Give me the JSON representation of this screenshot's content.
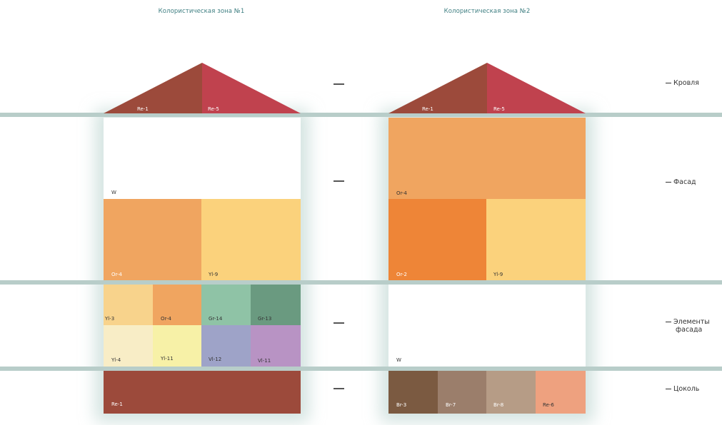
{
  "titles": {
    "zone1": "Колористическая зона №1",
    "zone2": "Колористическая зона №2"
  },
  "zone_labels": {
    "roof": "Кровля",
    "facade": "Фасад",
    "facade_elements_line1": "Элементы",
    "facade_elements_line2": "фасада",
    "plinth": "Цоколь"
  },
  "zone1": {
    "roof": [
      {
        "code": "Re-1",
        "color": "#9c4a3b"
      },
      {
        "code": "Re-5",
        "color": "#c0424e"
      }
    ],
    "facade_top": {
      "code": "W",
      "color": "#ffffff"
    },
    "facade_bottom": [
      {
        "code": "Or-4",
        "color": "#f0a560"
      },
      {
        "code": "Yl-9",
        "color": "#fbd27c"
      }
    ],
    "elements_row1": [
      {
        "code": "Yl-3",
        "color": "#f8d38c"
      },
      {
        "code": "Or-4",
        "color": "#f0a560"
      },
      {
        "code": "Gr-14",
        "color": "#8fc3a6"
      },
      {
        "code": "Gr-13",
        "color": "#6a9a80"
      }
    ],
    "elements_row2": [
      {
        "code": "Yl-4",
        "color": "#f8edc6"
      },
      {
        "code": "Yl-11",
        "color": "#f7f1a7"
      },
      {
        "code": "Vl-12",
        "color": "#9ea3c8"
      },
      {
        "code": "Vl-11",
        "color": "#b893c4"
      }
    ],
    "plinth": {
      "code": "Re-1",
      "color": "#9c4a3b"
    }
  },
  "zone2": {
    "roof": [
      {
        "code": "Re-1",
        "color": "#9c4a3b"
      },
      {
        "code": "Re-5",
        "color": "#c0424e"
      }
    ],
    "facade_top": {
      "code": "Or-4",
      "color": "#f0a560"
    },
    "facade_bottom": [
      {
        "code": "Or-2",
        "color": "#ee8537"
      },
      {
        "code": "Yl-9",
        "color": "#fbd27c"
      }
    ],
    "elements": {
      "code": "W",
      "color": "#ffffff"
    },
    "plinth": [
      {
        "code": "Br-3",
        "color": "#7b5a41"
      },
      {
        "code": "Br-7",
        "color": "#9b7e6b"
      },
      {
        "code": "Br-8",
        "color": "#b69c86"
      },
      {
        "code": "Re-6",
        "color": "#eea17f"
      }
    ]
  }
}
